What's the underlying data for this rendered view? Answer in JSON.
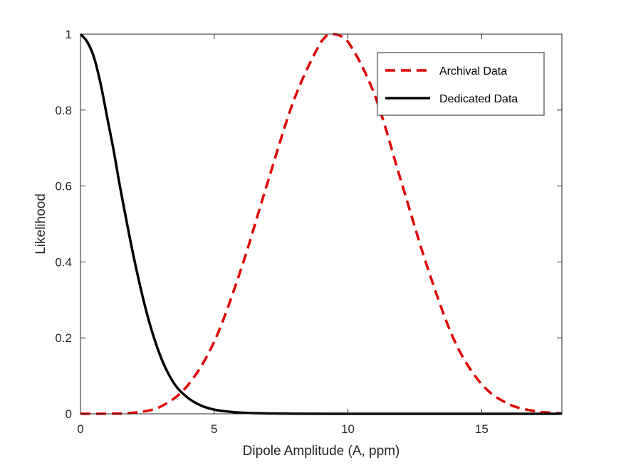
{
  "chart_data": {
    "type": "line",
    "xlabel": "Dipole Amplitude (A, ppm)",
    "ylabel": "Likelihood",
    "xlim": [
      0,
      18
    ],
    "ylim": [
      0,
      1
    ],
    "xticks": [
      0,
      5,
      10,
      15
    ],
    "yticks": [
      0,
      0.2,
      0.4,
      0.6,
      0.8,
      1
    ],
    "xtick_labels": [
      "0",
      "5",
      "10",
      "15"
    ],
    "ytick_labels": [
      "0",
      "0.2",
      "0.4",
      "0.6",
      "0.8",
      "1"
    ],
    "grid": false,
    "legend_position": "top-right",
    "series": [
      {
        "name": "Archival Data",
        "style": "dashed",
        "color": "#e00000",
        "x": [
          0,
          1,
          2,
          3,
          4,
          5,
          6,
          7,
          8,
          9,
          9.4,
          10,
          11,
          12,
          13,
          14,
          15,
          16,
          17,
          18
        ],
        "y": [
          0,
          0.0002,
          0.003,
          0.019,
          0.074,
          0.19,
          0.38,
          0.61,
          0.83,
          0.98,
          1.0,
          0.98,
          0.84,
          0.61,
          0.38,
          0.19,
          0.078,
          0.026,
          0.007,
          0.001
        ]
      },
      {
        "name": "Dedicated Data",
        "style": "solid",
        "color": "#000000",
        "x": [
          0,
          0.25,
          0.5,
          0.75,
          1,
          1.25,
          1.5,
          2,
          2.5,
          3,
          3.5,
          4,
          4.5,
          5,
          5.5,
          6,
          7,
          8,
          10,
          12,
          15,
          18
        ],
        "y": [
          1.0,
          0.98,
          0.94,
          0.87,
          0.78,
          0.69,
          0.59,
          0.41,
          0.26,
          0.15,
          0.08,
          0.043,
          0.022,
          0.011,
          0.006,
          0.003,
          0.001,
          0.0003,
          0,
          0,
          0,
          0
        ]
      }
    ]
  }
}
